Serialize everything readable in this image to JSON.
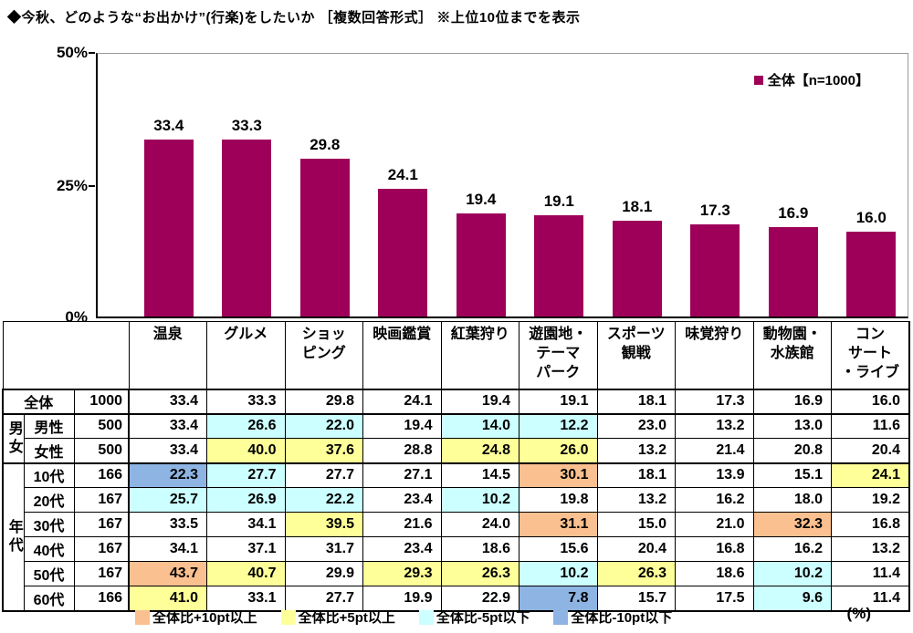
{
  "title": "◆今秋、どのような“お出かけ”(行楽)をしたいか ［複数回答形式］ ※上位10位までを表示",
  "unit_label": "(%)",
  "colors": {
    "bar": "#9E0059",
    "plus10": "#FAC090",
    "plus5": "#FFFF99",
    "minus5": "#CCFFFF",
    "minus10": "#8DB4E2"
  },
  "chart_data": {
    "type": "bar",
    "title": "今秋、どのような“お出かけ”(行楽)をしたいか",
    "legend": "全体【n=1000】",
    "legend_position": "top-right",
    "categories": [
      "温泉",
      "グルメ",
      "ショッピング",
      "映画鑑賞",
      "紅葉狩り",
      "遊園地・テーマパーク",
      "スポーツ観戦",
      "味覚狩り",
      "動物園・水族館",
      "コンサート・ライブ"
    ],
    "values": [
      33.4,
      33.3,
      29.8,
      24.1,
      19.4,
      19.1,
      18.1,
      17.3,
      16.9,
      16.0
    ],
    "xlabel": "",
    "ylabel": "",
    "ylim": [
      0,
      50
    ],
    "yticks": [
      "0%",
      "25%",
      "50%"
    ],
    "grid": false
  },
  "table": {
    "col_headers": [
      "温泉",
      "グルメ",
      "ショッ\nピング",
      "映画鑑賞",
      "紅葉狩り",
      "遊園地・\nテーマ\nパーク",
      "スポーツ\n観戦",
      "味覚狩り",
      "動物園・\n水族館",
      "コン\nサート\n・ライブ"
    ],
    "rows": [
      {
        "label": "全体",
        "label_span": 2,
        "n": "1000",
        "values": [
          "33.4",
          "33.3",
          "29.8",
          "24.1",
          "19.4",
          "19.1",
          "18.1",
          "17.3",
          "16.9",
          "16.0"
        ],
        "marks": [
          "",
          "",
          "",
          "",
          "",
          "",
          "",
          "",
          "",
          ""
        ]
      },
      {
        "group": {
          "label": "男女",
          "span": 2
        },
        "label": "男性",
        "n": "500",
        "values": [
          "33.4",
          "26.6",
          "22.0",
          "19.4",
          "14.0",
          "12.2",
          "23.0",
          "13.2",
          "13.0",
          "11.6"
        ],
        "marks": [
          "",
          "m5",
          "m5",
          "",
          "m5",
          "m5",
          "",
          "",
          "",
          ""
        ]
      },
      {
        "label": "女性",
        "n": "500",
        "values": [
          "33.4",
          "40.0",
          "37.6",
          "28.8",
          "24.8",
          "26.0",
          "13.2",
          "21.4",
          "20.8",
          "20.4"
        ],
        "marks": [
          "",
          "p5",
          "p5",
          "",
          "p5",
          "p5",
          "",
          "",
          "",
          ""
        ]
      },
      {
        "group": {
          "label": "年代",
          "span": 6
        },
        "label": "10代",
        "n": "166",
        "values": [
          "22.3",
          "27.7",
          "27.7",
          "27.1",
          "14.5",
          "30.1",
          "18.1",
          "13.9",
          "15.1",
          "24.1"
        ],
        "marks": [
          "m10",
          "m5",
          "",
          "",
          "",
          "p10",
          "",
          "",
          "",
          "p5"
        ]
      },
      {
        "label": "20代",
        "n": "167",
        "values": [
          "25.7",
          "26.9",
          "22.2",
          "23.4",
          "10.2",
          "19.8",
          "13.2",
          "16.2",
          "18.0",
          "19.2"
        ],
        "marks": [
          "m5",
          "m5",
          "m5",
          "",
          "m5",
          "",
          "",
          "",
          "",
          ""
        ]
      },
      {
        "label": "30代",
        "n": "167",
        "values": [
          "33.5",
          "34.1",
          "39.5",
          "21.6",
          "24.0",
          "31.1",
          "15.0",
          "21.0",
          "32.3",
          "16.8"
        ],
        "marks": [
          "",
          "",
          "p5",
          "",
          "",
          "p10",
          "",
          "",
          "p10",
          ""
        ]
      },
      {
        "label": "40代",
        "n": "167",
        "values": [
          "34.1",
          "37.1",
          "31.7",
          "23.4",
          "18.6",
          "15.6",
          "20.4",
          "16.8",
          "16.2",
          "13.2"
        ],
        "marks": [
          "",
          "",
          "",
          "",
          "",
          "",
          "",
          "",
          "",
          ""
        ]
      },
      {
        "label": "50代",
        "n": "167",
        "values": [
          "43.7",
          "40.7",
          "29.9",
          "29.3",
          "26.3",
          "10.2",
          "26.3",
          "18.6",
          "10.2",
          "11.4"
        ],
        "marks": [
          "p10",
          "p5",
          "",
          "p5",
          "p5",
          "m5",
          "p5",
          "",
          "m5",
          ""
        ]
      },
      {
        "label": "60代",
        "n": "166",
        "values": [
          "41.0",
          "33.1",
          "27.7",
          "19.9",
          "22.9",
          "7.8",
          "15.7",
          "17.5",
          "9.6",
          "11.4"
        ],
        "marks": [
          "p5",
          "",
          "",
          "",
          "",
          "m10",
          "",
          "",
          "m5",
          ""
        ]
      }
    ]
  },
  "legend_items": [
    {
      "label": "全体比+10pt以上",
      "mark": "p10"
    },
    {
      "label": "全体比+5pt以上",
      "mark": "p5"
    },
    {
      "label": "全体比-5pt以下",
      "mark": "m5"
    },
    {
      "label": "全体比-10pt以下",
      "mark": "m10"
    }
  ]
}
